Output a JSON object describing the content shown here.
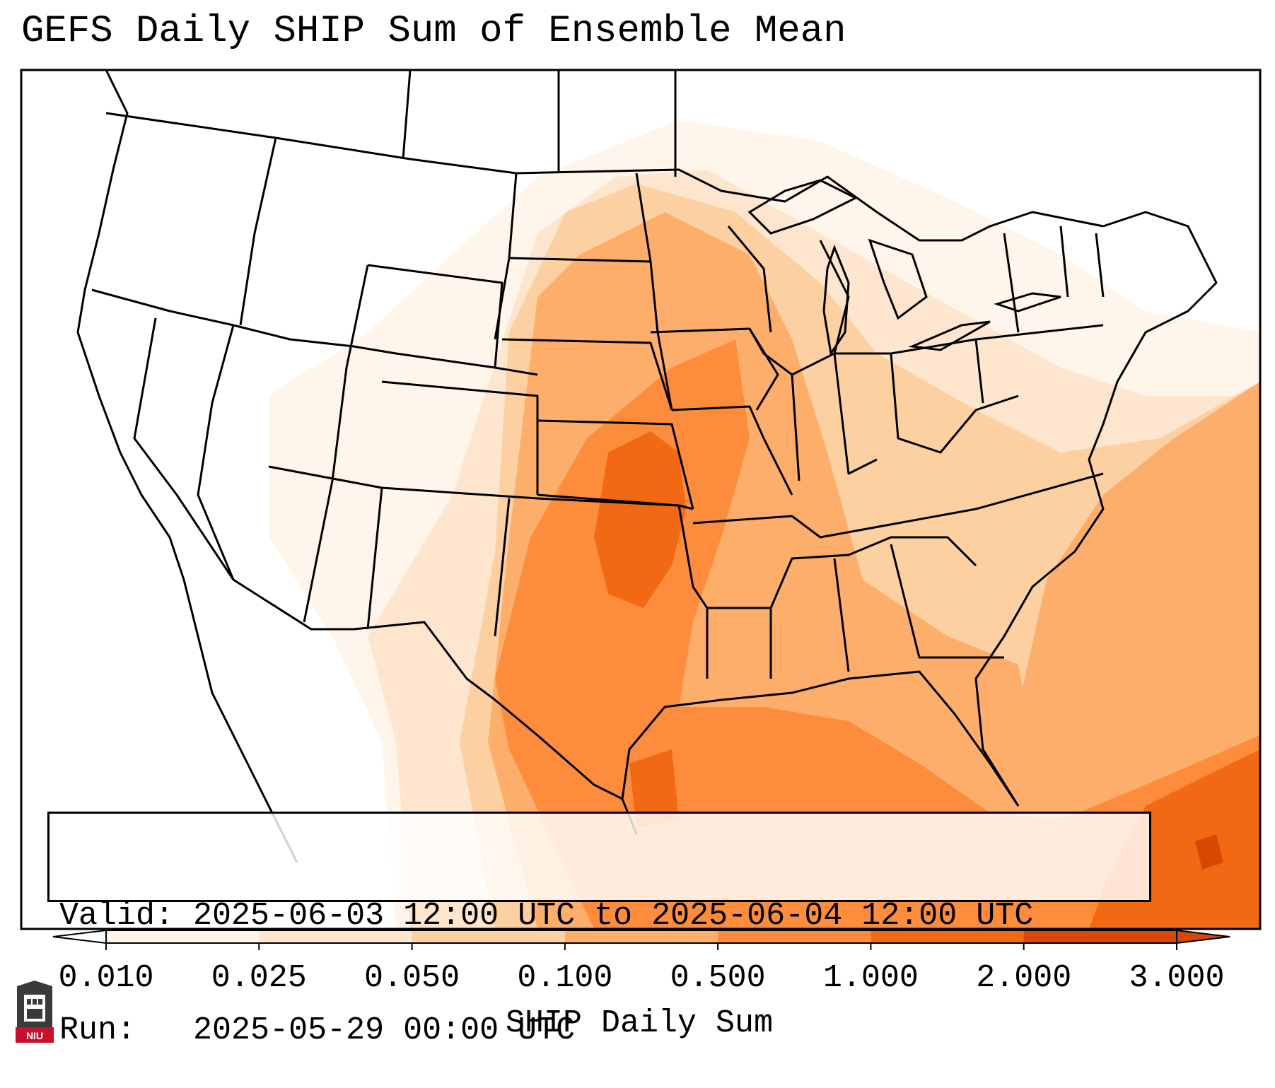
{
  "title": "GEFS Daily SHIP Sum of Ensemble Mean",
  "info": {
    "valid_label": "Valid:",
    "valid_value": "2025-06-03 12:00 UTC to 2025-06-04 12:00 UTC",
    "run_label": "Run:",
    "run_value": "2025-05-29 00:00 UTC"
  },
  "colorbar": {
    "title": "SHIP Daily Sum",
    "ticks": [
      "0.010",
      "0.025",
      "0.050",
      "0.100",
      "0.500",
      "1.000",
      "2.000",
      "3.000"
    ],
    "colors": [
      "#fff5eb",
      "#fee6ce",
      "#fdd0a2",
      "#fdae6b",
      "#fd8d3c",
      "#f16913",
      "#d94801"
    ],
    "extend": "both"
  },
  "logo": {
    "text": "NIU"
  },
  "map": {
    "region": "Continental United States",
    "field_colors": {
      "very_light": "#fff5eb",
      "light": "#fee6ce",
      "light_orange": "#fdd0a2",
      "mid_orange": "#fdae6b",
      "orange": "#fd8d3c",
      "dark_orange": "#f16913"
    }
  }
}
